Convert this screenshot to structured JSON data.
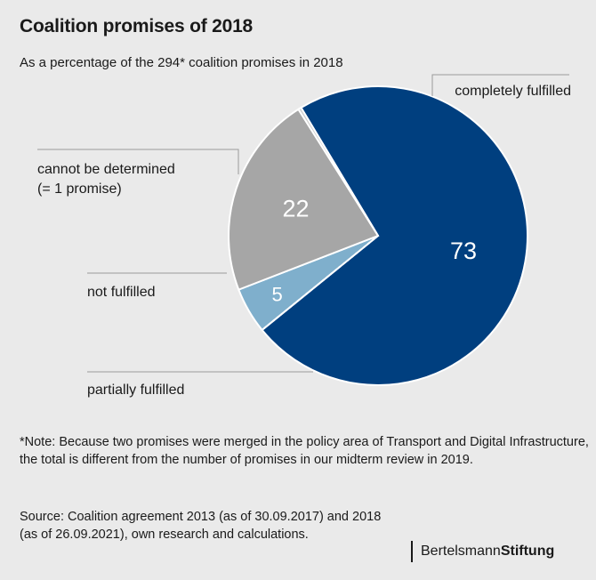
{
  "header": {
    "title": "Coalition promises of 2018",
    "subtitle": "As a percentage of the 294* coalition promises in 2018"
  },
  "chart_data": {
    "type": "pie",
    "slices": [
      {
        "label": "completely fulfilled",
        "value": 73,
        "value_label": "73",
        "color": "#003f7f"
      },
      {
        "label": "partially fulfilled",
        "value": 5,
        "value_label": "5",
        "color": "#7fafcc"
      },
      {
        "label": "not fulfilled",
        "value": 22,
        "value_label": "22",
        "color": "#a6a6a6"
      },
      {
        "label": "cannot be determined (= 1 promise)",
        "value": 0.34,
        "value_label": "",
        "color": "#cfcfcf"
      }
    ],
    "label_lines": {
      "completely": "completely fulfilled",
      "cannot_1": "cannot be determined",
      "cannot_2": "(= 1 promise)",
      "not": "not fulfilled",
      "partial": "partially fulfilled"
    }
  },
  "note": "*Note: Because two promises were merged in the policy area of Transport and Digital Infrastructure, the total is different from the number of promises in our midterm review in 2019.",
  "source": "Source: Coalition agreement 2013 (as of 30.09.2017) and 2018 (as of 26.09.2021), own research and calculations.",
  "logo": {
    "part1": "Bertelsmann",
    "part2": "Stiftung"
  }
}
